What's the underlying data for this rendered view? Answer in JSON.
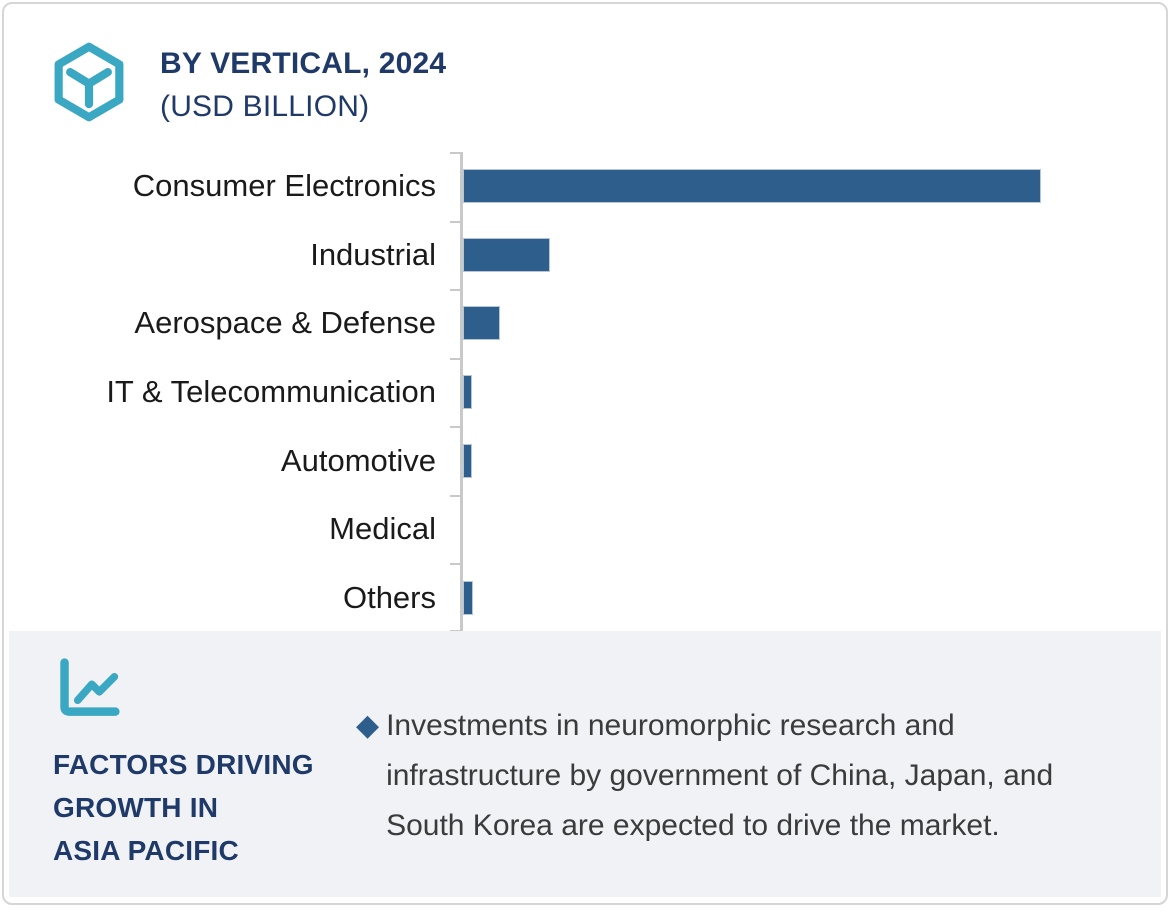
{
  "header": {
    "icon": "hexagon-cube-icon",
    "title_line1": "BY VERTICAL, 2024",
    "title_line2": "(USD BILLION)"
  },
  "chart_data": {
    "type": "bar",
    "orientation": "horizontal",
    "title": "BY VERTICAL, 2024 (USD BILLION)",
    "unit": "USD Billion",
    "categories": [
      "Consumer Electronics",
      "Industrial",
      "Aerospace & Defense",
      "IT & Telecommunication",
      "Automotive",
      "Medical",
      "Others"
    ],
    "values_pct_of_max": [
      100,
      15.1,
      6.4,
      1.5,
      1.5,
      0,
      1.7
    ],
    "note": "No numeric axis, gridlines or data labels are shown; values are relative bar lengths as percent of the longest bar (Consumer Electronics).",
    "value_labels_shown": false,
    "axis_tick_labels_shown": false,
    "grid": false,
    "legend": false,
    "bar_color": "#2e5e8c",
    "axis_color": "#c9c9c9"
  },
  "footer": {
    "icon": "line-chart-icon",
    "heading_lines": [
      "FACTORS DRIVING",
      "GROWTH IN",
      "ASIA PACIFIC"
    ],
    "bullet_marker": "◆",
    "bullet_text": "Investments in neuromorphic research and infrastructure by government of China, Japan, and South Korea are expected to drive the market."
  },
  "colors": {
    "accent_teal": "#3aa7c3",
    "navy": "#1f3a68",
    "bar_blue": "#2e5e8c",
    "footer_bg": "#f0f2f6",
    "card_border": "#d6d6d6"
  }
}
